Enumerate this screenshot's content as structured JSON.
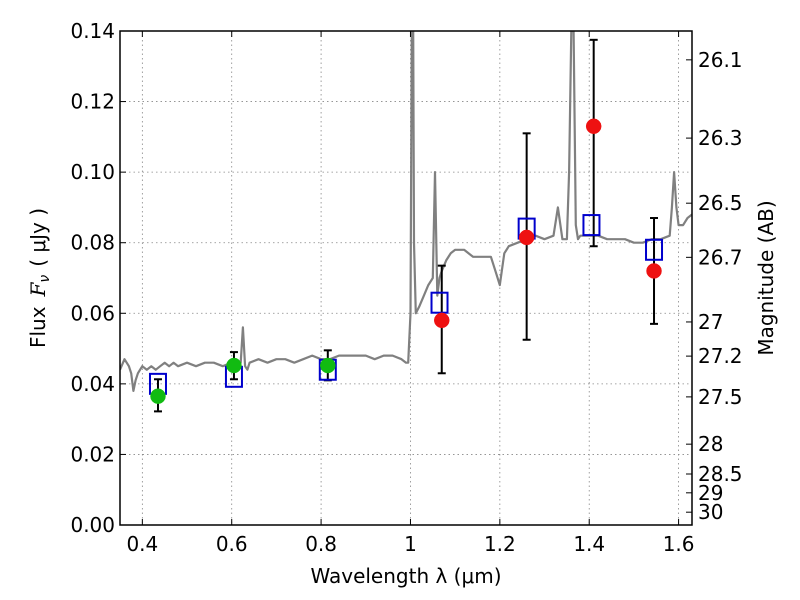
{
  "chart_data": {
    "type": "scatter",
    "xlabel": "Wavelength  λ (μm)",
    "ylabel_text": "Flux",
    "ylabel_symbol": "F",
    "ylabel_subscript": "ν",
    "ylabel_units": "( μJy )",
    "ylabel_right": "Magnitude (AB)",
    "xlim": [
      0.35,
      1.63
    ],
    "ylim": [
      0.0,
      0.14
    ],
    "grid": true,
    "x_ticks": [
      {
        "value": 0.4,
        "label": "0.4"
      },
      {
        "value": 0.6,
        "label": "0.6"
      },
      {
        "value": 0.8,
        "label": "0.8"
      },
      {
        "value": 1.0,
        "label": "1"
      },
      {
        "value": 1.2,
        "label": "1.2"
      },
      {
        "value": 1.4,
        "label": "1.4"
      },
      {
        "value": 1.6,
        "label": "1.6"
      }
    ],
    "y_ticks": [
      {
        "value": 0.0,
        "label": "0.00"
      },
      {
        "value": 0.02,
        "label": "0.02"
      },
      {
        "value": 0.04,
        "label": "0.04"
      },
      {
        "value": 0.06,
        "label": "0.06"
      },
      {
        "value": 0.08,
        "label": "0.08"
      },
      {
        "value": 0.1,
        "label": "0.10"
      },
      {
        "value": 0.12,
        "label": "0.12"
      },
      {
        "value": 0.14,
        "label": "0.14"
      }
    ],
    "right_ticks": [
      {
        "label": "26.1",
        "value": 26.1
      },
      {
        "label": "26.3",
        "value": 26.3
      },
      {
        "label": "26.5",
        "value": 26.5
      },
      {
        "label": "26.7",
        "value": 26.7
      },
      {
        "label": "27",
        "value": 27.0
      },
      {
        "label": "27.2",
        "value": 27.2
      },
      {
        "label": "27.5",
        "value": 27.5
      },
      {
        "label": "28",
        "value": 28.0
      },
      {
        "label": "28.5",
        "value": 28.5
      },
      {
        "label": "29",
        "value": 29.0
      },
      {
        "label": "30",
        "value": 30.0
      }
    ],
    "colors": {
      "spectrum": "#808080",
      "model": "#0000cc",
      "observed": "#ee1111",
      "optical": "#11bb11",
      "errorbar": "#000000",
      "grid": "#888888"
    },
    "spectrum": {
      "x": [
        0.35,
        0.36,
        0.365,
        0.37,
        0.375,
        0.38,
        0.385,
        0.39,
        0.395,
        0.4,
        0.41,
        0.42,
        0.43,
        0.44,
        0.45,
        0.46,
        0.47,
        0.48,
        0.5,
        0.52,
        0.54,
        0.56,
        0.58,
        0.6,
        0.61,
        0.62,
        0.625,
        0.63,
        0.635,
        0.64,
        0.66,
        0.68,
        0.7,
        0.72,
        0.74,
        0.76,
        0.78,
        0.8,
        0.82,
        0.84,
        0.86,
        0.88,
        0.9,
        0.92,
        0.94,
        0.96,
        0.98,
        0.99,
        0.995,
        1.0,
        1.003,
        1.006,
        1.008,
        1.012,
        1.02,
        1.03,
        1.04,
        1.05,
        1.055,
        1.06,
        1.065,
        1.07,
        1.08,
        1.09,
        1.1,
        1.12,
        1.14,
        1.16,
        1.18,
        1.19,
        1.2,
        1.21,
        1.22,
        1.24,
        1.26,
        1.28,
        1.3,
        1.32,
        1.33,
        1.34,
        1.35,
        1.355,
        1.36,
        1.365,
        1.37,
        1.375,
        1.38,
        1.4,
        1.42,
        1.44,
        1.46,
        1.48,
        1.5,
        1.52,
        1.54,
        1.56,
        1.58,
        1.585,
        1.59,
        1.595,
        1.6,
        1.61,
        1.62,
        1.63
      ],
      "y": [
        0.044,
        0.047,
        0.046,
        0.045,
        0.043,
        0.038,
        0.041,
        0.043,
        0.044,
        0.045,
        0.044,
        0.045,
        0.044,
        0.045,
        0.046,
        0.045,
        0.046,
        0.045,
        0.046,
        0.045,
        0.046,
        0.046,
        0.045,
        0.046,
        0.045,
        0.046,
        0.056,
        0.045,
        0.044,
        0.046,
        0.047,
        0.046,
        0.047,
        0.047,
        0.046,
        0.047,
        0.048,
        0.047,
        0.047,
        0.048,
        0.048,
        0.048,
        0.048,
        0.047,
        0.048,
        0.048,
        0.047,
        0.046,
        0.046,
        0.06,
        0.14,
        0.14,
        0.08,
        0.06,
        0.062,
        0.065,
        0.068,
        0.07,
        0.1,
        0.065,
        0.07,
        0.072,
        0.075,
        0.077,
        0.078,
        0.078,
        0.076,
        0.076,
        0.076,
        0.072,
        0.068,
        0.077,
        0.079,
        0.08,
        0.081,
        0.082,
        0.081,
        0.082,
        0.09,
        0.081,
        0.081,
        0.1,
        0.14,
        0.14,
        0.085,
        0.081,
        0.082,
        0.082,
        0.082,
        0.081,
        0.081,
        0.081,
        0.08,
        0.08,
        0.081,
        0.081,
        0.082,
        0.09,
        0.1,
        0.09,
        0.085,
        0.085,
        0.087,
        0.088
      ]
    },
    "model": {
      "x": [
        0.435,
        0.605,
        0.815,
        1.065,
        1.26,
        1.405,
        1.545
      ],
      "y": [
        0.04,
        0.042,
        0.044,
        0.063,
        0.084,
        0.085,
        0.078
      ]
    },
    "observed": {
      "x": [
        1.07,
        1.26,
        1.41,
        1.545
      ],
      "y": [
        0.058,
        0.0815,
        0.113,
        0.072
      ],
      "err_low": [
        0.043,
        0.0525,
        0.079,
        0.057
      ],
      "err_high": [
        0.0735,
        0.111,
        0.1375,
        0.087
      ]
    },
    "optical": {
      "x": [
        0.435,
        0.605,
        0.815
      ],
      "y": [
        0.0365,
        0.0452,
        0.0452
      ],
      "err_low": [
        0.0322,
        0.0413,
        0.041
      ],
      "err_high": [
        0.0413,
        0.049,
        0.0495
      ]
    }
  }
}
